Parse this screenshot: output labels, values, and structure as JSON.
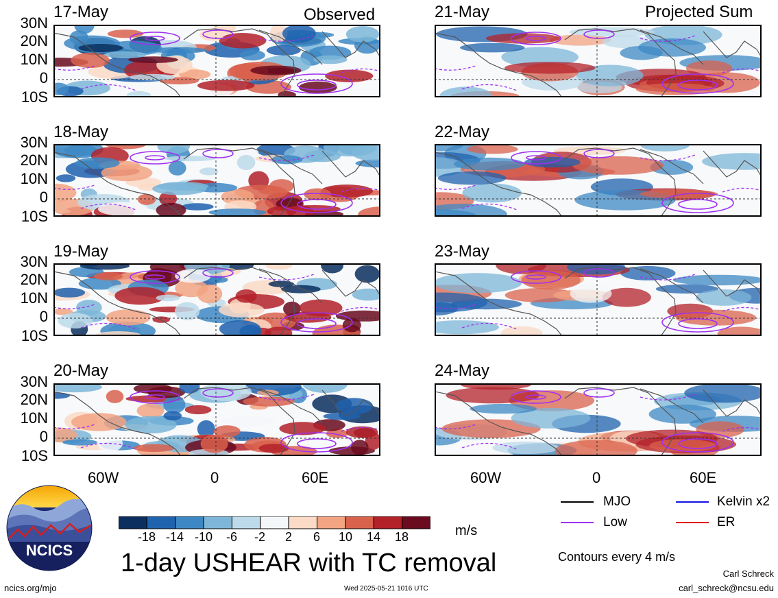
{
  "observed": {
    "heading": "Observed",
    "dates": [
      "17-May",
      "18-May",
      "19-May",
      "20-May"
    ]
  },
  "projected": {
    "heading": "Projected Sum",
    "dates": [
      "21-May",
      "22-May",
      "23-May",
      "24-May"
    ]
  },
  "lat_ticks": [
    "30N",
    "20N",
    "10N",
    "0",
    "10S"
  ],
  "lon_ticks": [
    "60W",
    "0",
    "60E"
  ],
  "colorbar": {
    "labels": [
      "-18",
      "-14",
      "-10",
      "-6",
      "-2",
      "2",
      "6",
      "10",
      "14",
      "18"
    ],
    "colors": [
      "#0b2f5e",
      "#1f62ae",
      "#3d88c4",
      "#7db6d8",
      "#bddaea",
      "#f4f7fa",
      "#fbdac6",
      "#f2a483",
      "#d9624d",
      "#b32129",
      "#6a0b1f"
    ],
    "units": "m/s"
  },
  "legend": {
    "items": [
      {
        "label": "MJO",
        "color": "#000000"
      },
      {
        "label": "Kelvin x2",
        "color": "#1010e0"
      },
      {
        "label": "Low",
        "color": "#a030f0"
      },
      {
        "label": "ER",
        "color": "#e01818"
      }
    ],
    "contours_note": "Contours every 4 m/s"
  },
  "title": "1-day USHEAR with TC removal",
  "logo_text": "NCICS",
  "footer": {
    "url": "ncics.org/mjo",
    "timestamp": "Wed 2025-05-21 1016 UTC",
    "author": "Carl Schreck",
    "email": "carl_schreck@ncsu.edu"
  }
}
